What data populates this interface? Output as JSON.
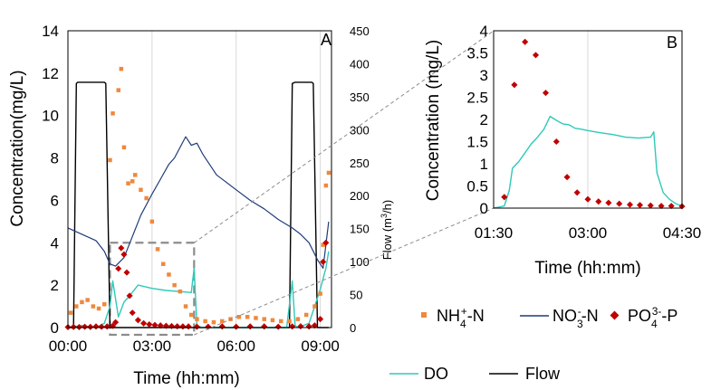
{
  "colors": {
    "nh4": "#f0883c",
    "no3": "#1f3c78",
    "po4": "#c00000",
    "do": "#2fc9b9",
    "flow": "#000000",
    "grid": "#d9d9d9"
  },
  "legend": {
    "nh4": {
      "main": "NH",
      "sub": "4",
      "sup": "+",
      "rest": "-N"
    },
    "no3": {
      "main": "NO",
      "sub": "3",
      "sup": "-",
      "rest": "-N"
    },
    "po4": {
      "main": "PO",
      "sub": "4",
      "sup": "3-",
      "rest": "-P"
    },
    "do": "DO",
    "flow": "Flow"
  },
  "chart_data": [
    {
      "panel": "A",
      "type": "line",
      "ylabel": "Concentration(mg/L)",
      "xlabel": "Time (hh:mm)",
      "y2label": {
        "main": "Flow (m",
        "sup": "3",
        "rest": "/h)"
      },
      "ylim": [
        0,
        14
      ],
      "y2lim": [
        0,
        450
      ],
      "xlim_hours": [
        0,
        9.4
      ],
      "yticks": [
        "0",
        "2",
        "4",
        "6",
        "8",
        "10",
        "12",
        "14"
      ],
      "y2ticks": [
        "0",
        "50",
        "100",
        "150",
        "200",
        "250",
        "300",
        "350",
        "400",
        "450"
      ],
      "xticks": [
        "00:00",
        "03:00",
        "06:00",
        "09:00"
      ],
      "grid": "vertical",
      "series": {
        "flow": {
          "x": [
            0,
            0.2,
            0.3,
            0.35,
            1.3,
            1.35,
            1.5,
            7.9,
            8.0,
            8.1,
            8.7,
            8.75,
            8.9,
            9.3
          ],
          "y": [
            0,
            0,
            370,
            372,
            372,
            370,
            0,
            0,
            370,
            372,
            372,
            370,
            0,
            0
          ]
        },
        "no3": {
          "x": [
            0,
            0.5,
            1,
            1.3,
            1.5,
            1.7,
            2,
            2.3,
            2.6,
            3,
            3.3,
            3.6,
            3.8,
            4,
            4.2,
            4.4,
            4.6,
            4.8,
            5,
            5.3,
            5.6,
            6,
            6.5,
            7,
            7.5,
            8,
            8.3,
            8.6,
            8.9,
            9.1,
            9.3
          ],
          "y": [
            4.7,
            4.4,
            4.1,
            3.6,
            3.0,
            2.9,
            3.3,
            4.3,
            5.3,
            6.3,
            7.0,
            7.7,
            8.0,
            8.5,
            9.0,
            8.6,
            8.7,
            8.2,
            7.8,
            7.2,
            6.9,
            6.5,
            6.0,
            5.6,
            5.1,
            4.7,
            4.4,
            4.0,
            3.2,
            2.8,
            5.0
          ]
        },
        "do": {
          "x": [
            0,
            0.5,
            1,
            1.3,
            1.5,
            1.6,
            1.8,
            2,
            2.2,
            2.5,
            3,
            3.5,
            4,
            4.4,
            4.5,
            4.6,
            4.8,
            5,
            6,
            7,
            7.8,
            8,
            8.1,
            8.2,
            8.6,
            8.8,
            9,
            9.2,
            9.3
          ],
          "y": [
            0,
            0.1,
            0,
            0.2,
            1.0,
            2.2,
            0.5,
            1.2,
            1.5,
            2.0,
            1.85,
            1.75,
            1.7,
            1.65,
            2.8,
            0.1,
            0,
            0,
            0,
            0,
            0,
            2.2,
            0.1,
            0,
            0.2,
            1.0,
            1.8,
            2.8,
            3.6
          ]
        },
        "nh4": {
          "x": [
            0.1,
            0.3,
            0.5,
            0.7,
            0.9,
            1.1,
            1.3,
            1.5,
            1.6,
            1.8,
            1.9,
            2,
            2.15,
            2.3,
            2.4,
            2.6,
            2.8,
            3,
            3.2,
            3.4,
            3.6,
            3.8,
            4,
            4.2,
            4.4,
            4.6,
            4.9,
            5.2,
            5.5,
            5.8,
            6.1,
            6.4,
            6.7,
            7,
            7.3,
            7.6,
            7.9,
            8.2,
            8.5,
            8.8,
            9,
            9.1,
            9.2,
            9.3
          ],
          "y": [
            0.7,
            1.0,
            1.2,
            1.3,
            1.0,
            0.9,
            1.1,
            7.9,
            10.1,
            11.2,
            12.2,
            8.5,
            6.8,
            6.9,
            7.2,
            6.5,
            6.1,
            5.0,
            3.7,
            3.0,
            2.5,
            2.0,
            1.7,
            1.0,
            0.6,
            0.4,
            0.3,
            0.25,
            0.3,
            0.4,
            0.5,
            0.5,
            0.45,
            0.4,
            0.35,
            0.3,
            0.3,
            0.4,
            0.6,
            1.0,
            1.6,
            3.9,
            6.7,
            7.3
          ]
        },
        "po4": {
          "x": [
            0,
            0.2,
            0.4,
            0.6,
            0.8,
            1,
            1.2,
            1.4,
            1.6,
            1.7,
            1.8,
            1.9,
            2,
            2.1,
            2.2,
            2.3,
            2.5,
            2.7,
            2.9,
            3.1,
            3.3,
            3.5,
            3.7,
            3.9,
            4.1,
            4.3,
            4.6,
            5,
            5.5,
            6,
            6.5,
            7,
            7.5,
            8,
            8.3,
            8.6,
            8.8,
            9,
            9.1,
            9.2
          ],
          "y": [
            0.02,
            0.03,
            0.02,
            0.04,
            0.03,
            0.05,
            0.04,
            0.05,
            0.08,
            0.25,
            2.78,
            3.75,
            3.45,
            2.6,
            1.5,
            0.7,
            0.35,
            0.2,
            0.15,
            0.12,
            0.1,
            0.08,
            0.07,
            0.06,
            0.05,
            0.05,
            0.04,
            0.04,
            0.05,
            0.04,
            0.05,
            0.05,
            0.04,
            0.05,
            0.06,
            0.05,
            0.1,
            0.4,
            3.1,
            4.0
          ]
        }
      }
    },
    {
      "panel": "B",
      "type": "line",
      "ylabel": "Concentration (mg/L)",
      "xlabel": "Time (hh:mm)",
      "ylim": [
        0,
        4
      ],
      "xlim_hours": [
        1.5,
        4.5
      ],
      "yticks": [
        "0",
        "0.5",
        "1",
        "1.5",
        "2",
        "2.5",
        "3",
        "3.5",
        "4"
      ],
      "xticks": [
        "01:30",
        "03:00",
        "04:30"
      ],
      "grid": "vertical",
      "series": {
        "do": {
          "x": [
            1.5,
            1.58,
            1.67,
            1.75,
            1.8,
            1.9,
            2,
            2.1,
            2.2,
            2.3,
            2.4,
            2.5,
            2.6,
            2.7,
            2.8,
            2.9,
            3,
            3.2,
            3.4,
            3.6,
            3.8,
            4,
            4.05,
            4.1,
            4.2,
            4.3,
            4.4,
            4.5
          ],
          "y": [
            0,
            0.02,
            0.05,
            0.4,
            0.9,
            1.05,
            1.25,
            1.45,
            1.6,
            1.78,
            2.07,
            1.98,
            1.9,
            1.88,
            1.8,
            1.78,
            1.75,
            1.7,
            1.66,
            1.6,
            1.58,
            1.6,
            1.72,
            0.8,
            0.35,
            0.2,
            0.1,
            0.05
          ]
        },
        "po4": {
          "x": [
            1.67,
            1.83,
            2,
            2.17,
            2.33,
            2.5,
            2.67,
            2.83,
            3,
            3.17,
            3.33,
            3.5,
            3.67,
            3.83,
            4,
            4.17,
            4.33,
            4.5
          ],
          "y": [
            0.25,
            2.78,
            3.75,
            3.45,
            2.6,
            1.5,
            0.7,
            0.35,
            0.2,
            0.15,
            0.12,
            0.1,
            0.08,
            0.07,
            0.06,
            0.05,
            0.05,
            0.04
          ]
        }
      }
    }
  ]
}
